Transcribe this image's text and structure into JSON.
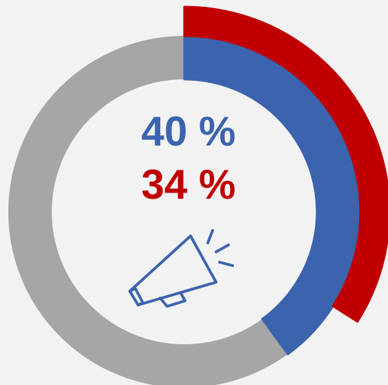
{
  "chart_data": {
    "type": "radial",
    "values": [
      40,
      34
    ],
    "value_labels": [
      "40 %",
      "34 %"
    ],
    "colors": [
      "#3c64ae",
      "#c00000"
    ],
    "track_color": "#a6a6a6",
    "ylim": [
      0,
      100
    ]
  }
}
